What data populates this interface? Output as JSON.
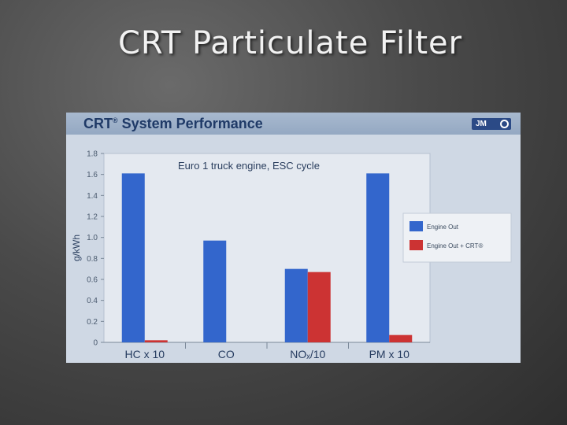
{
  "slide": {
    "title": "CRT Particulate Filter"
  },
  "figure": {
    "header_title": "CRT",
    "header_title_sup": "®",
    "header_title_rest": " System Performance",
    "logo_text": "JM"
  },
  "colors": {
    "engine_out": "#3366cc",
    "engine_out_crt": "#cc3333",
    "plot_bg": "#e4e9f0"
  },
  "chart_data": {
    "type": "bar",
    "annotation": "Euro 1 truck engine, ESC cycle",
    "ylabel": "g/kWh",
    "xlabel": "",
    "ylim": [
      0,
      1.8
    ],
    "yticks": [
      "0",
      "0.2",
      "0.4",
      "0.6",
      "0.8",
      "1.0",
      "1.2",
      "1.4",
      "1.6",
      "1.8"
    ],
    "grid": false,
    "legend_position": "right",
    "categories": [
      "HC x 10",
      "CO",
      "NOₓ/10",
      "PM x 10"
    ],
    "series": [
      {
        "name": "Engine Out",
        "values": [
          1.61,
          0.97,
          0.7,
          1.61
        ]
      },
      {
        "name": "Engine Out + CRT®",
        "values": [
          0.02,
          0.0,
          0.67,
          0.07
        ]
      }
    ]
  }
}
